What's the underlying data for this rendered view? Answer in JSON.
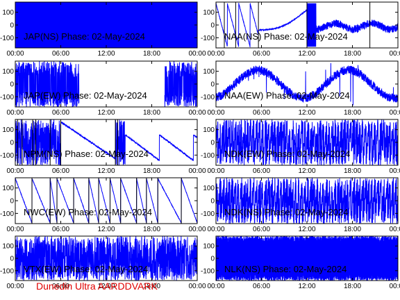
{
  "footer": {
    "text": "Dunedin Ultra AARDDVARK"
  },
  "colors": {
    "trace": "#0000ff",
    "frame": "#000000",
    "label": "#000000",
    "footer": "#e00000"
  },
  "chart_data": [
    {
      "type": "line",
      "label": "JAP(NS) Phase: 02-May-2024",
      "xlim": [
        0,
        24
      ],
      "ylim": [
        -180,
        180
      ],
      "xticks": [
        "00:00",
        "06:00",
        "12:00",
        "18:00",
        "00:00"
      ],
      "yticks": [
        "100",
        "0",
        "-100"
      ],
      "grid": false,
      "pattern": "solid"
    },
    {
      "type": "line",
      "label": "NAA(NS) Phase: 02-May-2024",
      "xlim": [
        0,
        24
      ],
      "ylim": [
        -180,
        180
      ],
      "xticks": [
        "00:00",
        "06:00",
        "12:00",
        "18:00",
        "00:00"
      ],
      "yticks": [
        "100",
        "0",
        "-100"
      ],
      "grid": false,
      "pattern": "ramps-then-curve",
      "vlines": [
        1.1,
        2.6,
        5.6,
        12.0,
        20.3
      ]
    },
    {
      "type": "line",
      "label": "JAP(EW) Phase: 02-May-2024",
      "xlim": [
        0,
        24
      ],
      "ylim": [
        -180,
        180
      ],
      "xticks": [
        "00:00",
        "06:00",
        "12:00",
        "18:00",
        "00:00"
      ],
      "yticks": [
        "100",
        "0",
        "-100"
      ],
      "grid": false,
      "pattern": "dense-with-gap",
      "gap": [
        8.4,
        19.7
      ]
    },
    {
      "type": "line",
      "label": "NAA(EW) Phase: 02-May-2024",
      "xlim": [
        0,
        24
      ],
      "ylim": [
        -180,
        180
      ],
      "xticks": [
        "00:00",
        "06:00",
        "12:00",
        "18:00",
        "00:00"
      ],
      "yticks": [
        "100",
        "0",
        "-100"
      ],
      "grid": false,
      "pattern": "noisy-curve"
    },
    {
      "type": "line",
      "label": "NPM(NS) Phase: 02-May-2024",
      "xlim": [
        0,
        24
      ],
      "ylim": [
        -180,
        180
      ],
      "xticks": [
        "00:00",
        "06:00",
        "12:00",
        "18:00",
        "00:00"
      ],
      "yticks": [
        "100",
        "0",
        "-100"
      ],
      "grid": false,
      "pattern": "declining-ramps",
      "vlines": [
        0.3,
        0.9,
        2.3,
        2.7,
        4.6,
        6.0,
        13.2,
        13.5
      ]
    },
    {
      "type": "line",
      "label": "NDK(EW) Phase: 02-May-2024",
      "xlim": [
        0,
        24
      ],
      "ylim": [
        -180,
        180
      ],
      "xticks": [
        "00:00",
        "06:00",
        "12:00",
        "18:00",
        "00:00"
      ],
      "yticks": [
        "100",
        "0",
        "-100"
      ],
      "grid": false,
      "pattern": "dense-wraps"
    },
    {
      "type": "line",
      "label": "NWC(EW) Phase: 02-May-2024",
      "xlim": [
        0,
        24
      ],
      "ylim": [
        -180,
        180
      ],
      "xticks": [
        "00:00",
        "06:00",
        "12:00",
        "18:00",
        "00:00"
      ],
      "yticks": [
        "100",
        "0",
        "-100"
      ],
      "grid": false,
      "pattern": "sawtooth",
      "vlines": [
        2.2,
        4.6,
        5.5,
        7.7,
        9.7,
        11.0,
        12.5,
        13.9,
        16.0,
        17.3,
        18.8,
        21.9
      ]
    },
    {
      "type": "line",
      "label": "NDK(NS) Phase: 02-May-2024",
      "xlim": [
        0,
        24
      ],
      "ylim": [
        -180,
        180
      ],
      "xticks": [
        "00:00",
        "06:00",
        "12:00",
        "18:00",
        "00:00"
      ],
      "yticks": [
        "100",
        "0",
        "-100"
      ],
      "grid": false,
      "pattern": "dense-wraps"
    },
    {
      "type": "line",
      "label": "VTX(EW) Phase: 02-May-2024",
      "xlim": [
        0,
        24
      ],
      "ylim": [
        -180,
        180
      ],
      "xticks": [
        "00:00",
        "06:00",
        "12:00",
        "18:00",
        "00:00"
      ],
      "yticks": [
        "100",
        "0",
        "-100"
      ],
      "grid": false,
      "pattern": "dense"
    },
    {
      "type": "line",
      "label": "NLK(NS) Phase: 02-May-2024",
      "xlim": [
        0,
        24
      ],
      "ylim": [
        -180,
        180
      ],
      "xticks": [
        "00:00",
        "06:00",
        "12:00",
        "18:00",
        "00:00"
      ],
      "yticks": [
        "100",
        "0",
        "-100"
      ],
      "grid": false,
      "pattern": "very-dense"
    }
  ]
}
